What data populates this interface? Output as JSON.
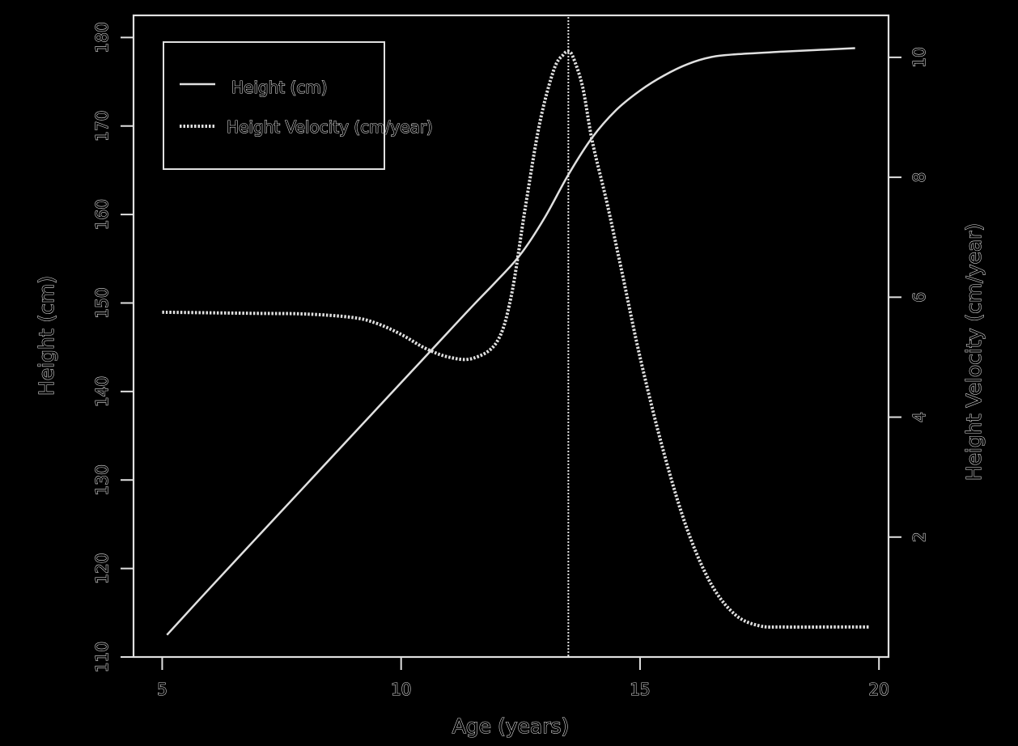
{
  "chart_data": {
    "type": "line",
    "title": "",
    "xlabel": "Age (years)",
    "ylabel_left": "Height (cm)",
    "ylabel_right": "Height Velocity (cm/year)",
    "xlim": [
      4.4,
      20.2
    ],
    "ylim_left": [
      110,
      182.5
    ],
    "ylim_right": [
      0,
      10.7
    ],
    "x_ticks": [
      "5",
      "10",
      "15",
      "20"
    ],
    "y_left_ticks": [
      "110",
      "120",
      "130",
      "140",
      "150",
      "160",
      "170",
      "180"
    ],
    "y_right_ticks": [
      "2",
      "4",
      "6",
      "8",
      "10"
    ],
    "legend": {
      "position": "top-left",
      "entries": [
        "Height (cm)",
        "Height Velocity (cm/year)"
      ]
    },
    "grid": false,
    "colors": {
      "background": "#000000",
      "ink": "#e0e0e0"
    },
    "peak_velocity_age": 13.5,
    "series": [
      {
        "name": "Height (cm)",
        "axis": "left",
        "style": "solid",
        "x": [
          5.1,
          6,
          7,
          8,
          9,
          10,
          11,
          11.5,
          12,
          12.5,
          13,
          13.5,
          14,
          14.5,
          15,
          15.5,
          16,
          16.5,
          17,
          18,
          19.5
        ],
        "y": [
          112.5,
          117.8,
          123.6,
          129.4,
          135.2,
          141,
          146.8,
          149.7,
          152.5,
          155.5,
          159.6,
          164.5,
          168.7,
          171.8,
          174,
          175.7,
          177,
          177.8,
          178.1,
          178.4,
          178.8
        ]
      },
      {
        "name": "Height Velocity (cm/year)",
        "axis": "right",
        "style": "dotted",
        "x": [
          5,
          6,
          7,
          8,
          9,
          9.5,
          10,
          10.5,
          11,
          11.5,
          12,
          12.3,
          12.6,
          12.9,
          13.2,
          13.4,
          13.5,
          13.6,
          13.8,
          14,
          14.3,
          14.6,
          15,
          15.5,
          16,
          16.5,
          17,
          17.5,
          18,
          19,
          19.8
        ],
        "y": [
          5.75,
          5.74,
          5.73,
          5.72,
          5.66,
          5.56,
          5.38,
          5.15,
          5.0,
          4.98,
          5.25,
          6.0,
          7.5,
          8.9,
          9.8,
          10.05,
          10.1,
          10.0,
          9.5,
          8.6,
          7.6,
          6.5,
          5.0,
          3.4,
          2.1,
          1.2,
          0.7,
          0.52,
          0.5,
          0.5,
          0.5
        ]
      }
    ]
  }
}
